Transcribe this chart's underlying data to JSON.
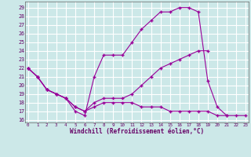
{
  "xlabel": "Windchill (Refroidissement éolien,°C)",
  "bg_color": "#cce8e8",
  "grid_color": "#ffffff",
  "line_color": "#990099",
  "x_ticks": [
    0,
    1,
    2,
    3,
    4,
    5,
    6,
    7,
    8,
    9,
    10,
    11,
    12,
    13,
    14,
    15,
    16,
    17,
    18,
    19,
    20,
    21,
    22,
    23
  ],
  "y_ticks": [
    16,
    17,
    18,
    19,
    20,
    21,
    22,
    23,
    24,
    25,
    26,
    27,
    28,
    29
  ],
  "xlim": [
    -0.3,
    23.3
  ],
  "ylim": [
    15.7,
    29.7
  ],
  "line1_x": [
    0,
    1,
    2,
    3,
    4,
    5,
    6,
    7,
    8,
    9,
    10,
    11,
    12,
    13,
    14,
    15,
    16,
    17,
    18,
    19,
    20,
    21
  ],
  "line1_y": [
    22,
    21,
    19.5,
    19,
    18.5,
    17.0,
    16.5,
    21.0,
    23.5,
    23.5,
    23.5,
    25.0,
    26.5,
    27.5,
    28.5,
    28.5,
    29.0,
    29.0,
    28.5,
    20.5,
    17.5,
    16.5
  ],
  "line2_x": [
    0,
    1,
    2,
    3,
    4,
    5,
    6,
    7,
    8,
    9,
    10,
    11,
    12,
    13,
    14,
    15,
    16,
    17,
    18,
    19
  ],
  "line2_y": [
    22,
    21,
    19.5,
    19,
    18.5,
    17.5,
    17.0,
    18.0,
    18.5,
    18.5,
    18.5,
    19.0,
    20.0,
    21.0,
    22.0,
    22.5,
    23.0,
    23.5,
    24.0,
    24.0
  ],
  "line3_x": [
    0,
    1,
    2,
    3,
    4,
    5,
    6,
    7,
    8,
    9,
    10,
    11,
    12,
    13,
    14,
    15,
    16,
    17,
    18,
    19,
    20,
    21,
    22,
    23
  ],
  "line3_y": [
    22,
    21,
    19.5,
    19,
    18.5,
    17.5,
    17.0,
    17.5,
    18.0,
    18.0,
    18.0,
    18.0,
    17.5,
    17.5,
    17.5,
    17.0,
    17.0,
    17.0,
    17.0,
    17.0,
    16.5,
    16.5,
    16.5,
    16.5
  ]
}
